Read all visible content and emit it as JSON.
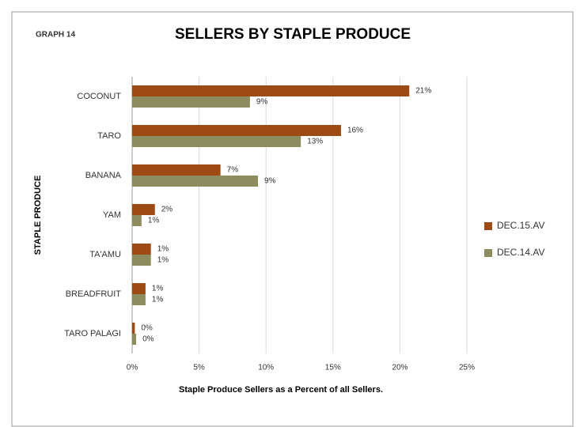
{
  "chart_data": {
    "type": "hbar",
    "label": "GRAPH 14",
    "title": "SELLERS BY STAPLE PRODUCE",
    "x_label": "Staple Produce Sellers as a Percent of all Sellers.",
    "y_label": "STAPLE PRODUCE",
    "categories": [
      "COCONUT",
      "TARO",
      "BANANA",
      "YAM",
      "TA'AMU",
      "BREADFRUIT",
      "TARO PALAGI"
    ],
    "series": [
      {
        "name": "DEC.15.AV",
        "color": "#9e4a14",
        "values": [
          20.7,
          15.6,
          6.6,
          1.7,
          1.4,
          1.0,
          0.2
        ],
        "value_labels": [
          "21%",
          "16%",
          "7%",
          "2%",
          "1%",
          "1%",
          "0%"
        ]
      },
      {
        "name": "DEC.14.AV",
        "color": "#8c8c5e",
        "values": [
          8.8,
          12.6,
          9.4,
          0.7,
          1.4,
          1.0,
          0.3
        ],
        "value_labels": [
          "9%",
          "13%",
          "9%",
          "1%",
          "1%",
          "1%",
          "0%"
        ]
      }
    ],
    "xlim": [
      0,
      25
    ],
    "xticks": [
      {
        "value": 0,
        "label": "0%"
      },
      {
        "value": 5,
        "label": "5%"
      },
      {
        "value": 10,
        "label": "10%"
      },
      {
        "value": 15,
        "label": "15%"
      },
      {
        "value": 20,
        "label": "20%"
      },
      {
        "value": 25,
        "label": "25%"
      }
    ],
    "grid": true,
    "legend": "right"
  }
}
